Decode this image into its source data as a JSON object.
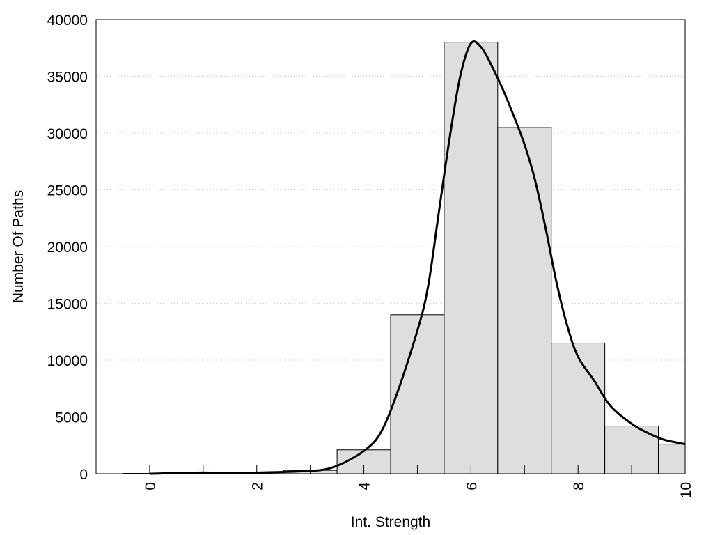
{
  "chart_data": {
    "type": "bar",
    "title": "",
    "xlabel": "Int. Strength",
    "ylabel": "Number Of Paths",
    "xlim": [
      -1,
      10
    ],
    "ylim": [
      0,
      40000
    ],
    "x_ticks": [
      "0",
      "2",
      "4",
      "6",
      "8",
      "10"
    ],
    "y_ticks": [
      "0",
      "5000",
      "10000",
      "15000",
      "20000",
      "25000",
      "30000",
      "35000",
      "40000"
    ],
    "grid": "horizontal dotted",
    "bin_width": 1,
    "bars": [
      {
        "x": 0,
        "value": 30
      },
      {
        "x": 1,
        "value": 60
      },
      {
        "x": 2,
        "value": 100
      },
      {
        "x": 3,
        "value": 300
      },
      {
        "x": 4,
        "value": 2100
      },
      {
        "x": 5,
        "value": 14000
      },
      {
        "x": 6,
        "value": 38000
      },
      {
        "x": 7,
        "value": 30500
      },
      {
        "x": 8,
        "value": 11500
      },
      {
        "x": 9,
        "value": 4200
      },
      {
        "x": 10,
        "value": 2600
      }
    ],
    "curve": {
      "x": [
        0,
        1,
        1.5,
        2,
        2.5,
        3,
        3.3,
        3.6,
        4,
        4.3,
        4.6,
        5,
        5.2,
        5.4,
        5.6,
        5.8,
        6,
        6.2,
        6.4,
        6.6,
        6.8,
        7,
        7.2,
        7.4,
        7.6,
        7.8,
        8,
        8.3,
        8.6,
        9,
        9.3,
        9.6,
        10
      ],
      "y": [
        0,
        100,
        30,
        100,
        150,
        250,
        400,
        900,
        2000,
        3500,
        6800,
        12600,
        16500,
        23000,
        29500,
        35000,
        37900,
        37500,
        35800,
        33800,
        31500,
        29000,
        25800,
        21500,
        16800,
        13000,
        10300,
        8200,
        6000,
        4400,
        3600,
        3000,
        2600
      ]
    },
    "colors": {
      "bar_fill": "#dedede",
      "bar_stroke": "#000000",
      "curve": "#000000",
      "grid": "#c8c8c8"
    }
  }
}
